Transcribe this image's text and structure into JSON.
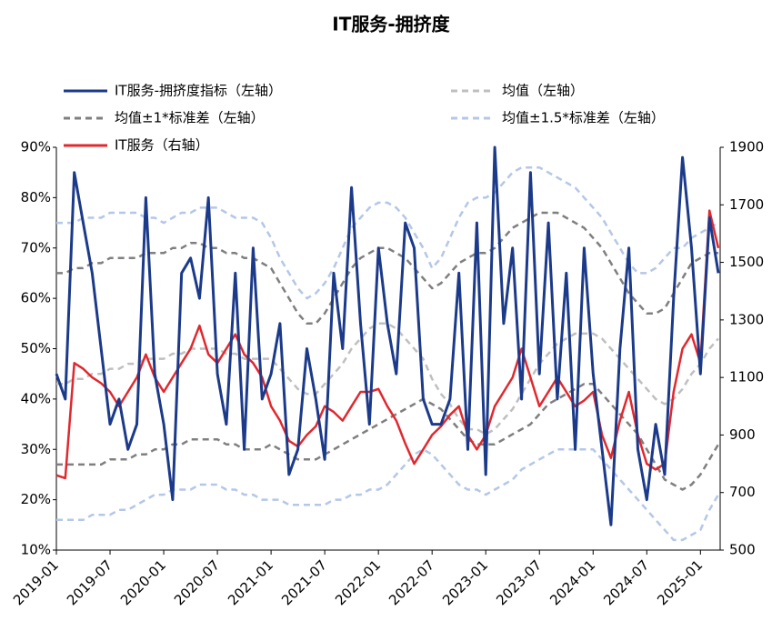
{
  "chart_data": {
    "type": "line",
    "title": "IT服务-拥挤度",
    "x": [
      "2019-01",
      "2019-02",
      "2019-03",
      "2019-04",
      "2019-05",
      "2019-06",
      "2019-07",
      "2019-08",
      "2019-09",
      "2019-10",
      "2019-11",
      "2019-12",
      "2020-01",
      "2020-02",
      "2020-03",
      "2020-04",
      "2020-05",
      "2020-06",
      "2020-07",
      "2020-08",
      "2020-09",
      "2020-10",
      "2020-11",
      "2020-12",
      "2021-01",
      "2021-02",
      "2021-03",
      "2021-04",
      "2021-05",
      "2021-06",
      "2021-07",
      "2021-08",
      "2021-09",
      "2021-10",
      "2021-11",
      "2021-12",
      "2022-01",
      "2022-02",
      "2022-03",
      "2022-04",
      "2022-05",
      "2022-06",
      "2022-07",
      "2022-08",
      "2022-09",
      "2022-10",
      "2022-11",
      "2022-12",
      "2023-01",
      "2023-02",
      "2023-03",
      "2023-04",
      "2023-05",
      "2023-06",
      "2023-07",
      "2023-08",
      "2023-09",
      "2023-10",
      "2023-11",
      "2023-12",
      "2024-01",
      "2024-02",
      "2024-03",
      "2024-04",
      "2024-05",
      "2024-06",
      "2024-07",
      "2024-08",
      "2024-09",
      "2024-10",
      "2024-11",
      "2024-12",
      "2025-01",
      "2025-02",
      "2025-03"
    ],
    "xlim": [
      "2019-01",
      "2025-03"
    ],
    "xticks": [
      "2019-01",
      "2019-07",
      "2020-01",
      "2020-07",
      "2021-01",
      "2021-07",
      "2022-01",
      "2022-07",
      "2023-01",
      "2023-07",
      "2024-01",
      "2024-07",
      "2025-01"
    ],
    "ylim": [
      10,
      90
    ],
    "yticks": [
      {
        "value": 10,
        "label": "10%"
      },
      {
        "value": 20,
        "label": "20%"
      },
      {
        "value": 30,
        "label": "30%"
      },
      {
        "value": 40,
        "label": "40%"
      },
      {
        "value": 50,
        "label": "50%"
      },
      {
        "value": 60,
        "label": "60%"
      },
      {
        "value": 70,
        "label": "70%"
      },
      {
        "value": 80,
        "label": "80%"
      },
      {
        "value": 90,
        "label": "90%"
      }
    ],
    "y2lim": [
      500,
      1900
    ],
    "y2ticks": [
      500,
      700,
      900,
      1100,
      1300,
      1500,
      1700,
      1900
    ],
    "series": [
      {
        "name": "IT服务-拥挤度指标（左轴）",
        "color": "#1b3a8a",
        "dashed": false,
        "values": [
          45,
          40,
          85,
          75,
          65,
          50,
          35,
          40,
          30,
          35,
          80,
          45,
          35,
          20,
          65,
          68,
          60,
          80,
          45,
          35,
          65,
          30,
          70,
          40,
          45,
          55,
          25,
          30,
          50,
          40,
          28,
          65,
          50,
          82,
          55,
          35,
          70,
          55,
          45,
          75,
          70,
          40,
          35,
          35,
          40,
          65,
          30,
          75,
          25,
          90,
          55,
          70,
          40,
          85,
          45,
          75,
          40,
          65,
          30,
          70,
          45,
          30,
          15,
          50,
          70,
          30,
          20,
          35,
          25,
          60,
          88,
          70,
          45,
          76,
          65
        ]
      },
      {
        "name": "均值（左轴）",
        "color": "#bfbfbf",
        "dashed": true,
        "values": [
          43,
          43,
          44,
          44,
          45,
          45,
          46,
          46,
          47,
          47,
          48,
          48,
          48,
          49,
          49,
          50,
          50,
          50,
          50,
          49,
          49,
          48,
          48,
          48,
          48,
          46,
          44,
          42,
          41,
          41,
          43,
          45,
          47,
          50,
          52,
          54,
          55,
          55,
          54,
          52,
          50,
          48,
          44,
          41,
          39,
          36,
          34,
          34,
          33,
          34,
          36,
          38,
          41,
          44,
          47,
          49,
          51,
          52,
          53,
          53,
          53,
          52,
          50,
          48,
          46,
          44,
          42,
          40,
          39,
          40,
          42,
          45,
          47,
          50,
          52
        ]
      },
      {
        "name": "均值±1*标准差（左轴）",
        "color": "#7f7f7f",
        "dashed": true,
        "values": [
          65,
          65,
          66,
          66,
          67,
          67,
          68,
          68,
          68,
          68,
          69,
          69,
          69,
          70,
          70,
          71,
          71,
          70,
          70,
          69,
          69,
          68,
          68,
          67,
          66,
          63,
          60,
          57,
          55,
          55,
          57,
          60,
          63,
          66,
          68,
          69,
          70,
          70,
          69,
          68,
          66,
          64,
          62,
          63,
          65,
          67,
          68,
          69,
          69,
          70,
          72,
          74,
          75,
          76,
          77,
          77,
          77,
          76,
          75,
          74,
          72,
          70,
          67,
          64,
          61,
          59,
          57,
          57,
          58,
          61,
          64,
          67,
          68,
          69,
          69
        ],
        "lower": [
          27,
          27,
          27,
          27,
          27,
          27,
          28,
          28,
          28,
          29,
          29,
          30,
          30,
          31,
          31,
          32,
          32,
          32,
          32,
          31,
          31,
          30,
          30,
          30,
          31,
          30,
          29,
          28,
          28,
          28,
          29,
          30,
          31,
          32,
          33,
          34,
          35,
          36,
          37,
          38,
          39,
          40,
          39,
          38,
          36,
          34,
          32,
          31,
          31,
          31,
          32,
          33,
          34,
          35,
          37,
          39,
          40,
          41,
          42,
          43,
          43,
          41,
          39,
          37,
          35,
          33,
          30,
          27,
          24,
          23,
          22,
          23,
          25,
          28,
          31
        ]
      },
      {
        "name": "均值±1.5*标准差（左轴）",
        "color": "#b4c7e7",
        "dashed": true,
        "values": [
          75,
          75,
          75,
          76,
          76,
          76,
          77,
          77,
          77,
          77,
          76,
          76,
          75,
          76,
          77,
          77,
          78,
          78,
          78,
          77,
          76,
          76,
          76,
          75,
          72,
          68,
          65,
          62,
          60,
          61,
          63,
          66,
          70,
          74,
          76,
          78,
          79,
          79,
          78,
          76,
          73,
          70,
          66,
          68,
          72,
          76,
          79,
          80,
          80,
          81,
          83,
          85,
          86,
          86,
          86,
          85,
          84,
          83,
          82,
          80,
          78,
          76,
          73,
          70,
          67,
          65,
          65,
          66,
          68,
          70,
          70,
          72,
          73,
          74,
          75
        ],
        "lower": [
          16,
          16,
          16,
          16,
          17,
          17,
          17,
          18,
          18,
          19,
          20,
          21,
          21,
          22,
          22,
          22,
          23,
          23,
          23,
          22,
          22,
          21,
          21,
          20,
          20,
          20,
          19,
          19,
          19,
          19,
          19,
          20,
          20,
          21,
          21,
          22,
          22,
          23,
          25,
          27,
          29,
          30,
          29,
          27,
          25,
          23,
          22,
          22,
          21,
          22,
          23,
          24,
          26,
          27,
          28,
          29,
          30,
          30,
          30,
          30,
          30,
          28,
          26,
          24,
          22,
          20,
          18,
          16,
          14,
          12,
          12,
          13,
          14,
          18,
          21
        ]
      },
      {
        "name": "IT服务（右轴）",
        "color": "#e0282e",
        "dashed": false,
        "axis": "y2",
        "values": [
          760,
          750,
          1150,
          1130,
          1100,
          1080,
          1050,
          1000,
          1050,
          1100,
          1180,
          1100,
          1050,
          1100,
          1150,
          1200,
          1280,
          1180,
          1150,
          1200,
          1250,
          1180,
          1150,
          1100,
          1000,
          950,
          880,
          860,
          900,
          930,
          1000,
          980,
          950,
          1000,
          1050,
          1050,
          1060,
          1000,
          950,
          870,
          800,
          850,
          900,
          930,
          970,
          1000,
          900,
          850,
          900,
          1000,
          1050,
          1100,
          1200,
          1100,
          1000,
          1050,
          1100,
          1050,
          1000,
          1020,
          1050,
          900,
          820,
          950,
          1050,
          900,
          800,
          780,
          800,
          1050,
          1200,
          1250,
          1150,
          1680,
          1550
        ]
      }
    ]
  }
}
